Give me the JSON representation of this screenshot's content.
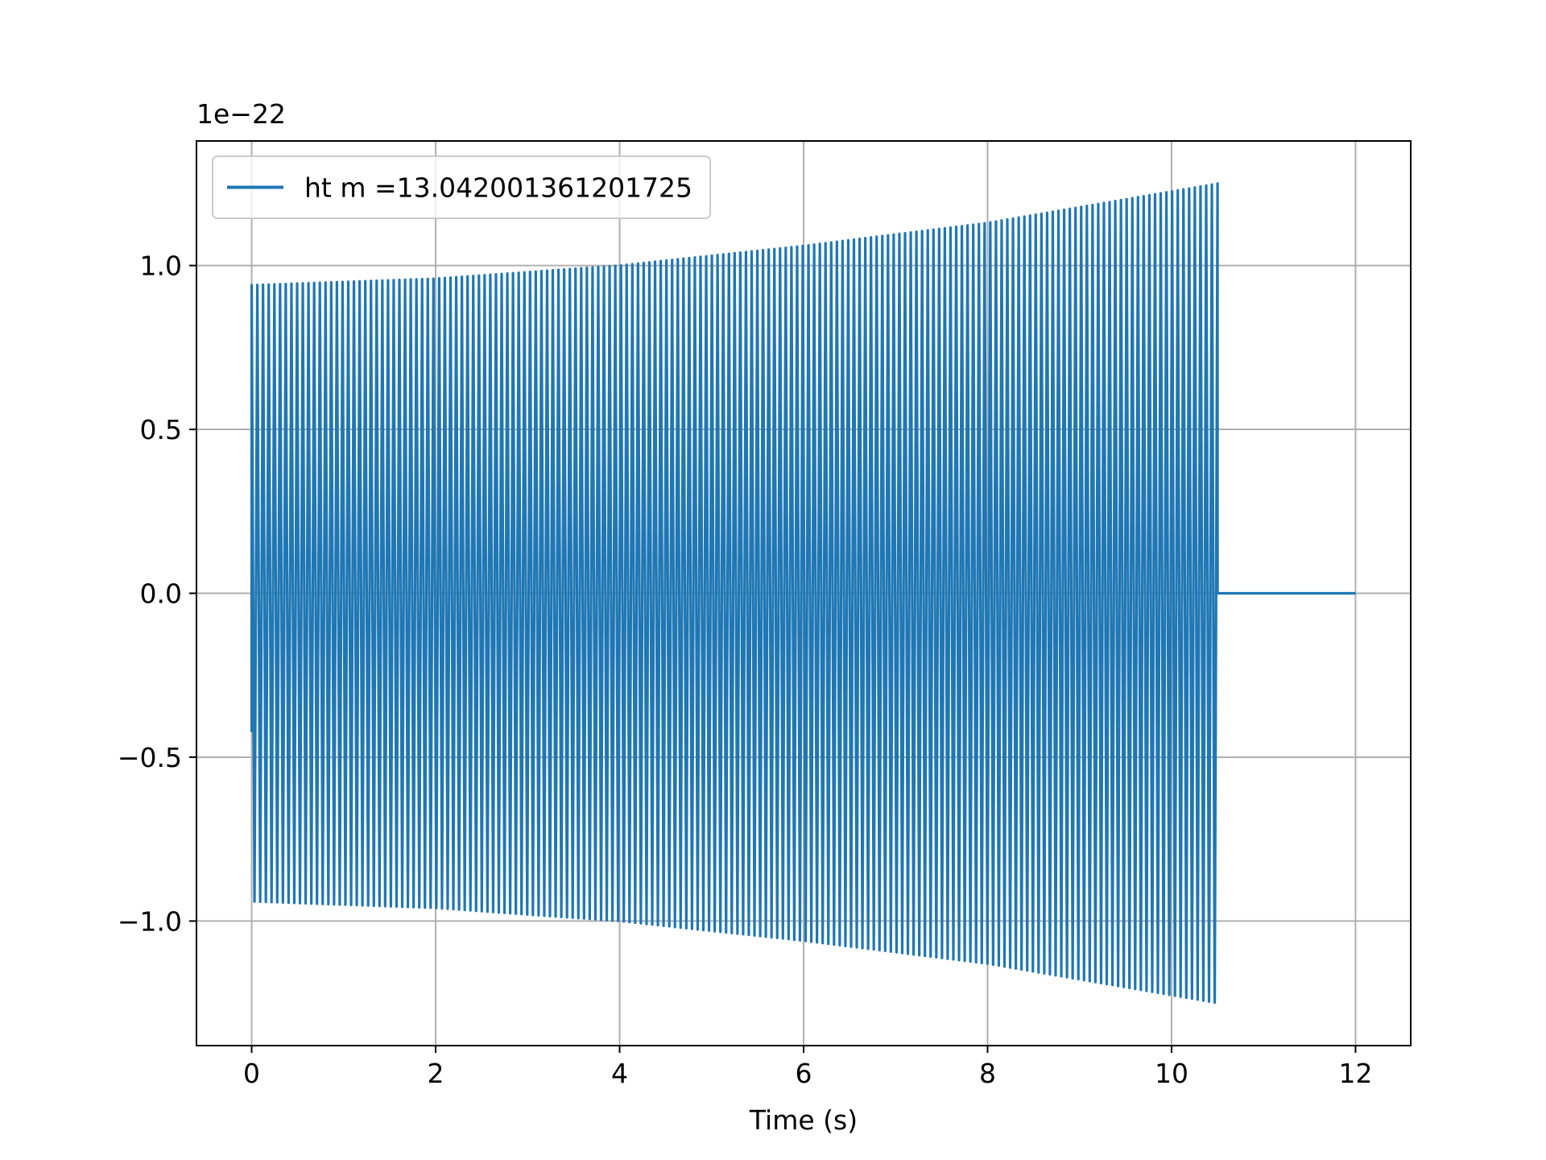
{
  "chart_data": {
    "type": "line",
    "title": "",
    "xlabel": "Time (s)",
    "ylabel": "",
    "y_offset_text": "1e−22",
    "xlim": [
      -0.6,
      12.6
    ],
    "ylim": [
      -1.38,
      1.38
    ],
    "x_ticks": [
      0,
      2,
      4,
      6,
      8,
      10,
      12
    ],
    "x_tick_labels": [
      "0",
      "2",
      "4",
      "6",
      "8",
      "10",
      "12"
    ],
    "y_ticks": [
      -1.0,
      -0.5,
      0.0,
      0.5,
      1.0
    ],
    "y_tick_labels": [
      "−1.0",
      "−0.5",
      "0.0",
      "0.5",
      "1.0"
    ],
    "grid": true,
    "legend": {
      "placement": "top-left",
      "entries": [
        "ht m =13.042001361201725"
      ]
    },
    "series": [
      {
        "name": "ht m =13.042001361201725",
        "color": "#1f77b4",
        "style": "oscillating chirp",
        "segment_oscillating": {
          "x_start": 0.0,
          "x_end": 10.5,
          "cycles": 170,
          "envelope": {
            "x": [
              0.0,
              2.0,
              4.0,
              6.0,
              8.0,
              10.5
            ],
            "y": [
              0.94,
              0.96,
              1.0,
              1.06,
              1.13,
              1.25
            ]
          }
        },
        "segment_flat": {
          "x": [
            10.5,
            12.0
          ],
          "y": [
            0.0,
            0.0
          ]
        }
      }
    ]
  }
}
